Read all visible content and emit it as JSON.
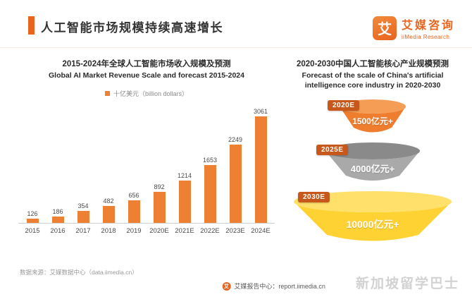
{
  "colors": {
    "accent": "#E8641F",
    "bar": "#ED8033",
    "badge": "#C8571C"
  },
  "header": {
    "title": "人工智能市场规模持续高速增长",
    "brand": "艾媒咨询",
    "brand_sub": "iiMedia Research",
    "brand_mark": "艾"
  },
  "chart_data": [
    {
      "type": "bar",
      "title": "2015-2024年全球人工智能市场收入规模及预测",
      "subtitle": "Global AI Market Revenue Scale and forecast 2015-2024",
      "legend": "十亿美元（billion dollars）",
      "categories": [
        "2015",
        "2016",
        "2017",
        "2018",
        "2019",
        "2020E",
        "2021E",
        "2022E",
        "2023E",
        "2024E"
      ],
      "values": [
        126,
        186,
        354,
        482,
        656,
        892,
        1214,
        1653,
        2249,
        3061
      ],
      "ylim": [
        0,
        3200
      ],
      "grid": false,
      "legend_position": "top"
    },
    {
      "type": "funnel",
      "title": "2020-2030中国人工智能核心产业规模预测",
      "subtitle_lines": [
        "Forecast of the scale of China's artificial",
        "intelligence core industry in 2020-2030"
      ],
      "items": [
        {
          "label": "2020E",
          "value": "1500亿元+",
          "body_color": "#EE7D2E",
          "top_color": "#F59C55"
        },
        {
          "label": "2025E",
          "value": "4000亿元+",
          "body_color": "#A9A9A9",
          "top_color": "#8A8A8A"
        },
        {
          "label": "2030E",
          "value": "10000亿元+",
          "body_color": "#FFD234",
          "top_color": "#FFE06A"
        }
      ]
    }
  ],
  "footer": {
    "source": "数据来源：艾媒数据中心（data.iimedia.cn）",
    "report": "艾媒报告中心：report.iimedia.cn",
    "watermark": "新加坡留学巴士"
  }
}
